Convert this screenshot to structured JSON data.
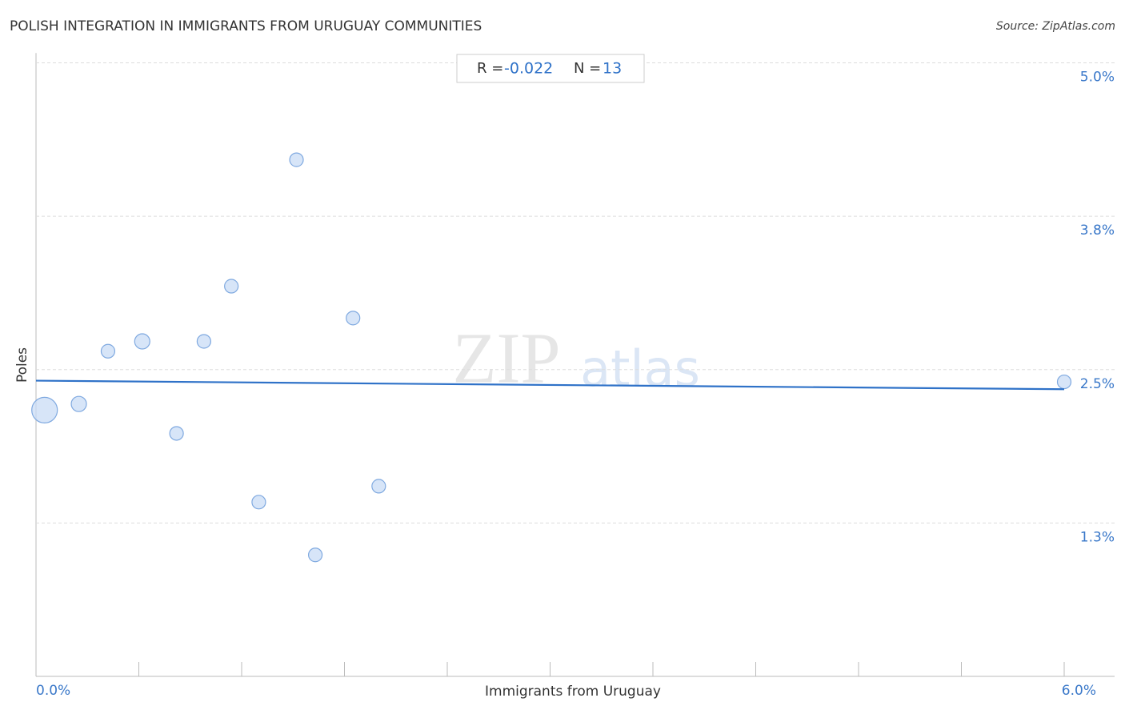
{
  "chart_data": {
    "type": "scatter",
    "title": "POLISH INTEGRATION IN IMMIGRANTS FROM URUGUAY COMMUNITIES",
    "source": "Source: ZipAtlas.com",
    "x_label": "Immigrants from Uruguay",
    "y_label": "Poles",
    "stats": {
      "r_label": "R = ",
      "r_value": "-0.022",
      "n_label": "N = ",
      "n_value": "13"
    },
    "watermark": {
      "zip": "ZIP",
      "atlas": "atlas"
    },
    "x": [
      0.05,
      0.25,
      0.42,
      0.62,
      0.82,
      0.98,
      1.14,
      1.3,
      1.52,
      1.63,
      1.85,
      2.0,
      6.0
    ],
    "values": [
      2.17,
      2.22,
      2.65,
      2.73,
      1.98,
      2.73,
      3.18,
      1.42,
      4.21,
      0.99,
      2.92,
      1.55,
      2.4
    ],
    "sizes": [
      16,
      9.5,
      8.5,
      9.5,
      8.5,
      8.5,
      8.5,
      8.5,
      8.5,
      8.5,
      8.5,
      8.5,
      8.5
    ],
    "color": "#c9dcf5",
    "stroke": "#7fa9e0",
    "trend": {
      "x": [
        0,
        6
      ],
      "y": [
        2.41,
        2.34
      ],
      "color": "#2f72c8"
    },
    "xlim": [
      0,
      6
    ],
    "ylim": [
      0,
      5.08
    ],
    "xticks": [
      {
        "value": 0,
        "label": "0.0%"
      },
      {
        "value": 6,
        "label": "6.0%"
      }
    ],
    "xtick_marks": [
      0.6,
      1.2,
      1.8,
      2.4,
      3.0,
      3.6,
      4.2,
      4.8,
      5.4,
      6.0
    ],
    "yticks": [
      {
        "value": 1.25,
        "label": "1.3%"
      },
      {
        "value": 2.5,
        "label": "2.5%"
      },
      {
        "value": 3.75,
        "label": "3.8%"
      },
      {
        "value": 5,
        "label": "5.0%"
      }
    ],
    "grid": true
  }
}
